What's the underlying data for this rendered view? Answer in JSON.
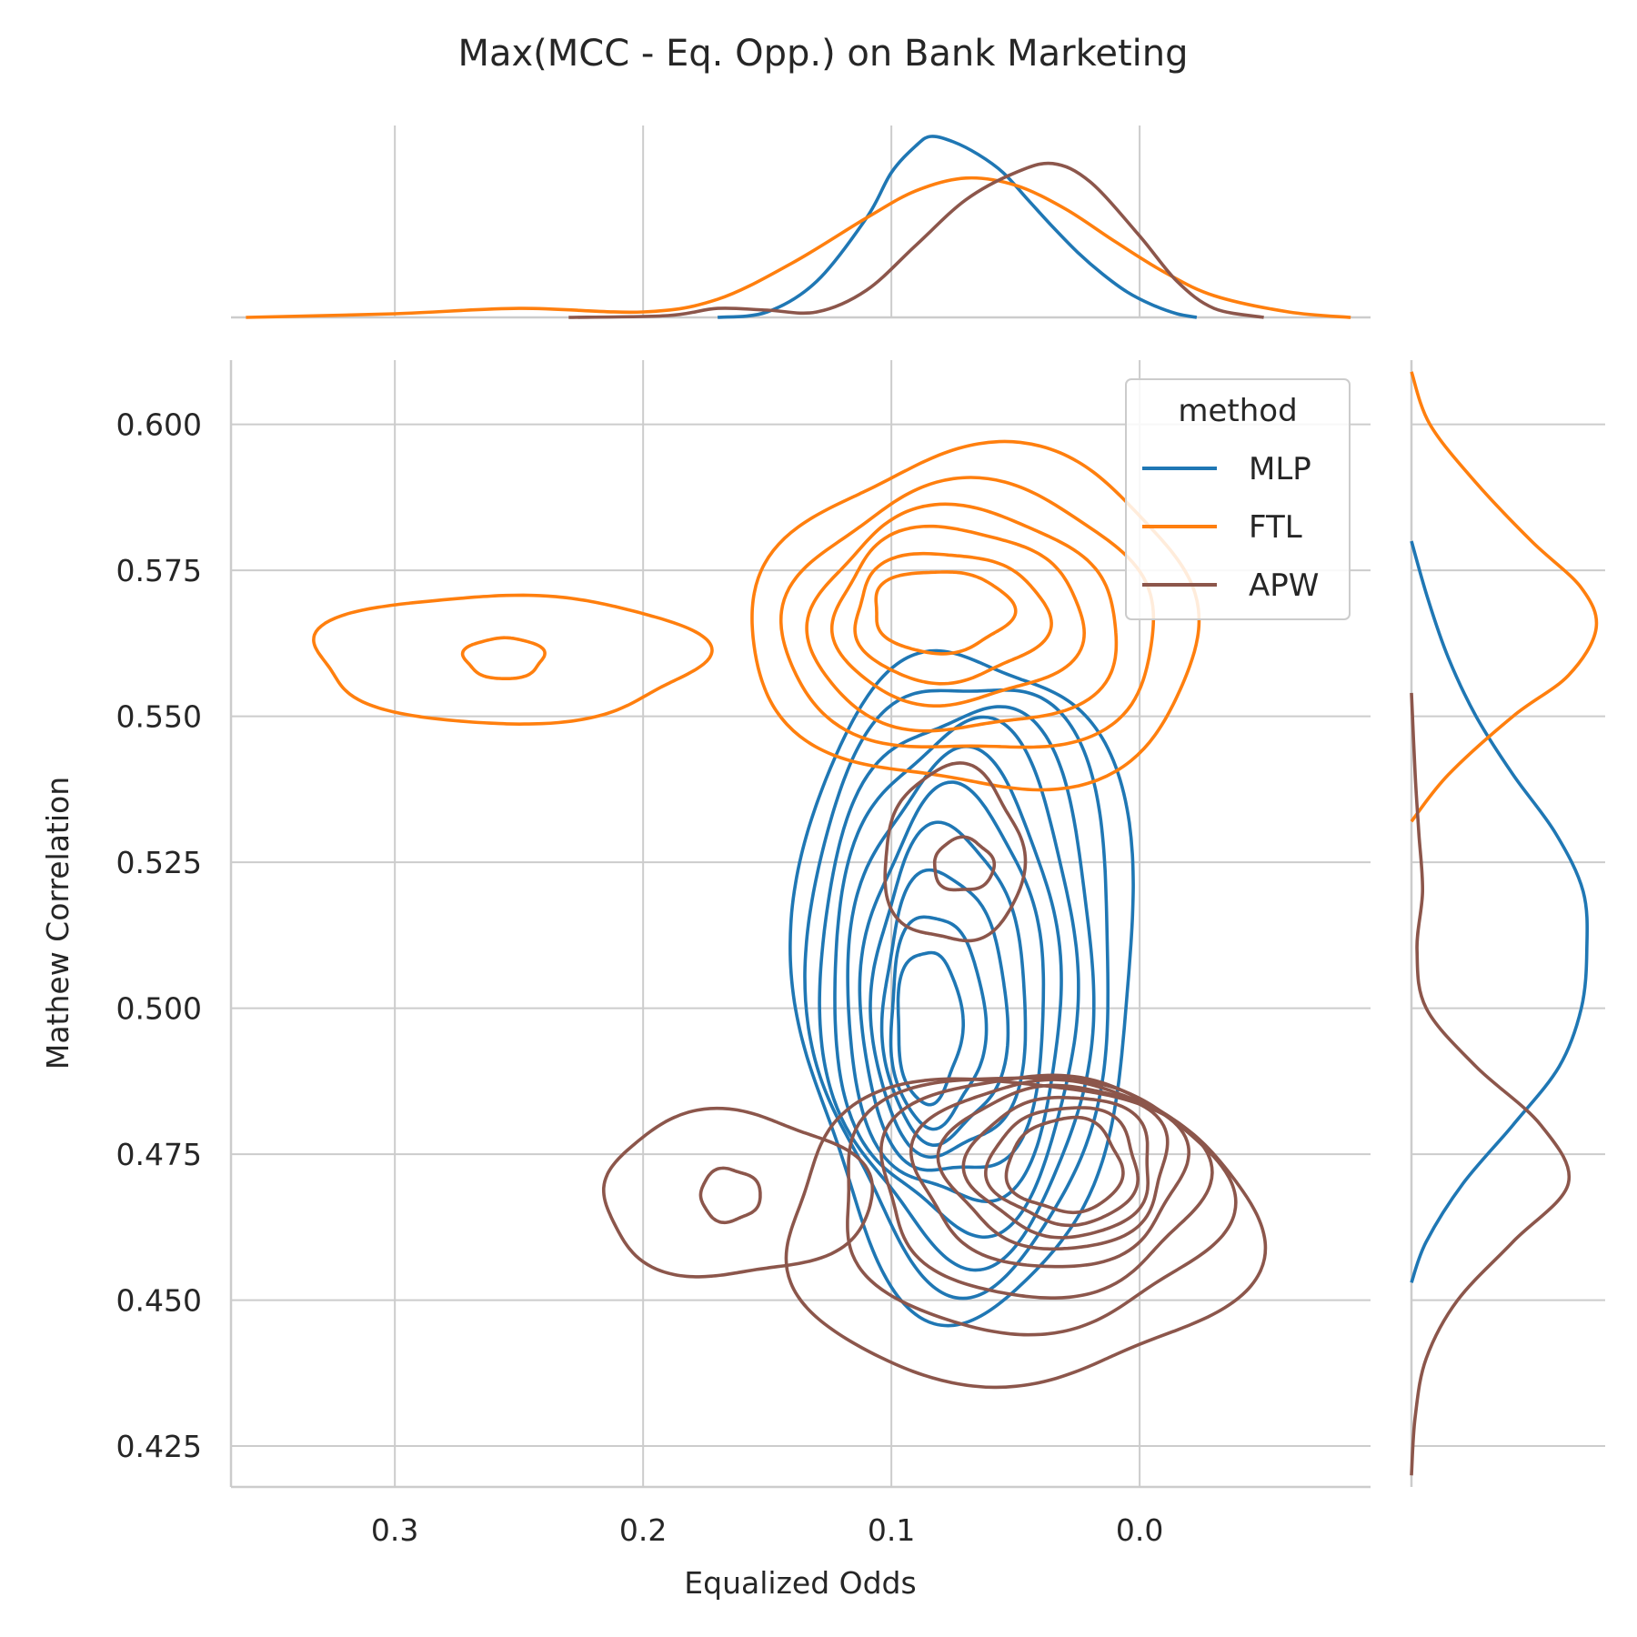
{
  "chart_data": {
    "type": "kde-joint",
    "title": "Max(MCC - Eq. Opp.) on Bank Marketing",
    "xlabel": "Equalized Odds",
    "ylabel": "Mathew Correlation",
    "x_inverted": true,
    "xlim": [
      0.366,
      -0.093
    ],
    "ylim": [
      0.418,
      0.611
    ],
    "x_ticks": [
      0.3,
      0.2,
      0.1,
      0.0
    ],
    "x_tick_labels": [
      "0.3",
      "0.2",
      "0.1",
      "0.0"
    ],
    "y_ticks": [
      0.425,
      0.45,
      0.475,
      0.5,
      0.525,
      0.55,
      0.575,
      0.6
    ],
    "y_tick_labels": [
      "0.425",
      "0.450",
      "0.475",
      "0.500",
      "0.525",
      "0.550",
      "0.575",
      "0.600"
    ],
    "grid": true,
    "legend": {
      "title": "method",
      "position": "top-right"
    },
    "series": [
      {
        "name": "MLP",
        "color": "#1f77b4",
        "contours": [
          {
            "cx": 0.07,
            "cy": 0.506,
            "rx": 0.068,
            "ry": 0.057
          },
          {
            "cx": 0.071,
            "cy": 0.506,
            "rx": 0.061,
            "ry": 0.052
          },
          {
            "cx": 0.072,
            "cy": 0.505,
            "rx": 0.055,
            "ry": 0.047
          },
          {
            "cx": 0.073,
            "cy": 0.505,
            "rx": 0.049,
            "ry": 0.043
          },
          {
            "cx": 0.074,
            "cy": 0.504,
            "rx": 0.043,
            "ry": 0.038
          },
          {
            "cx": 0.075,
            "cy": 0.503,
            "rx": 0.037,
            "ry": 0.033
          },
          {
            "cx": 0.077,
            "cy": 0.502,
            "rx": 0.031,
            "ry": 0.028
          },
          {
            "cx": 0.079,
            "cy": 0.5,
            "rx": 0.025,
            "ry": 0.023
          },
          {
            "cx": 0.082,
            "cy": 0.498,
            "rx": 0.019,
            "ry": 0.018
          },
          {
            "cx": 0.085,
            "cy": 0.497,
            "rx": 0.013,
            "ry": 0.013
          }
        ],
        "marginal_x": {
          "x": [
            0.17,
            0.15,
            0.13,
            0.11,
            0.1,
            0.09,
            0.084,
            0.075,
            0.065,
            0.055,
            0.045,
            0.035,
            0.025,
            0.015,
            0.005,
            -0.005,
            -0.015,
            -0.023
          ],
          "density": [
            0.0,
            0.03,
            0.2,
            0.55,
            0.8,
            0.95,
            1.0,
            0.97,
            0.9,
            0.8,
            0.65,
            0.5,
            0.36,
            0.24,
            0.14,
            0.07,
            0.02,
            0.0
          ]
        },
        "marginal_y": {
          "y": [
            0.453,
            0.46,
            0.47,
            0.48,
            0.49,
            0.5,
            0.51,
            0.52,
            0.53,
            0.54,
            0.55,
            0.56,
            0.57,
            0.58
          ],
          "density": [
            0.0,
            0.08,
            0.28,
            0.55,
            0.8,
            0.92,
            0.95,
            0.93,
            0.78,
            0.55,
            0.35,
            0.2,
            0.09,
            0.0
          ]
        }
      },
      {
        "name": "FTL",
        "color": "#ff7f0e",
        "contours": [
          {
            "cx": 0.065,
            "cy": 0.566,
            "rx": 0.09,
            "ry": 0.029
          },
          {
            "cx": 0.068,
            "cy": 0.566,
            "rx": 0.075,
            "ry": 0.023
          },
          {
            "cx": 0.071,
            "cy": 0.566,
            "rx": 0.062,
            "ry": 0.019
          },
          {
            "cx": 0.074,
            "cy": 0.567,
            "rx": 0.05,
            "ry": 0.015
          },
          {
            "cx": 0.077,
            "cy": 0.567,
            "rx": 0.039,
            "ry": 0.011
          },
          {
            "cx": 0.08,
            "cy": 0.568,
            "rx": 0.028,
            "ry": 0.007
          },
          {
            "cx": 0.255,
            "cy": 0.56,
            "rx": 0.078,
            "ry": 0.011
          },
          {
            "cx": 0.256,
            "cy": 0.56,
            "rx": 0.016,
            "ry": 0.0035
          }
        ],
        "marginal_x": {
          "x": [
            0.36,
            0.3,
            0.25,
            0.2,
            0.17,
            0.14,
            0.11,
            0.09,
            0.07,
            0.05,
            0.03,
            0.01,
            -0.01,
            -0.03,
            -0.06,
            -0.085
          ],
          "density": [
            0.0,
            0.02,
            0.05,
            0.03,
            0.1,
            0.3,
            0.55,
            0.7,
            0.77,
            0.73,
            0.6,
            0.42,
            0.25,
            0.12,
            0.03,
            0.0
          ]
        },
        "marginal_y": {
          "y": [
            0.532,
            0.54,
            0.55,
            0.557,
            0.565,
            0.572,
            0.58,
            0.59,
            0.6,
            0.609
          ],
          "density": [
            0.0,
            0.2,
            0.55,
            0.85,
            1.0,
            0.92,
            0.65,
            0.35,
            0.1,
            0.0
          ]
        }
      },
      {
        "name": "APW",
        "color": "#8c564b",
        "contours": [
          {
            "cx": 0.05,
            "cy": 0.462,
            "rx": 0.095,
            "ry": 0.026
          },
          {
            "cx": 0.045,
            "cy": 0.467,
            "rx": 0.078,
            "ry": 0.022
          },
          {
            "cx": 0.04,
            "cy": 0.47,
            "rx": 0.065,
            "ry": 0.019
          },
          {
            "cx": 0.036,
            "cy": 0.472,
            "rx": 0.054,
            "ry": 0.016
          },
          {
            "cx": 0.033,
            "cy": 0.473,
            "rx": 0.045,
            "ry": 0.014
          },
          {
            "cx": 0.031,
            "cy": 0.473,
            "rx": 0.037,
            "ry": 0.012
          },
          {
            "cx": 0.03,
            "cy": 0.473,
            "rx": 0.03,
            "ry": 0.01
          },
          {
            "cx": 0.03,
            "cy": 0.473,
            "rx": 0.023,
            "ry": 0.008
          },
          {
            "cx": 0.075,
            "cy": 0.526,
            "rx": 0.028,
            "ry": 0.015
          },
          {
            "cx": 0.071,
            "cy": 0.5245,
            "rx": 0.012,
            "ry": 0.0045
          },
          {
            "cx": 0.163,
            "cy": 0.468,
            "rx": 0.054,
            "ry": 0.014
          },
          {
            "cx": 0.165,
            "cy": 0.468,
            "rx": 0.012,
            "ry": 0.0045
          }
        ],
        "marginal_x": {
          "x": [
            0.23,
            0.19,
            0.17,
            0.15,
            0.13,
            0.11,
            0.09,
            0.07,
            0.05,
            0.035,
            0.02,
            0.0,
            -0.015,
            -0.03,
            -0.05
          ],
          "density": [
            0.0,
            0.01,
            0.05,
            0.04,
            0.03,
            0.15,
            0.4,
            0.65,
            0.8,
            0.85,
            0.75,
            0.45,
            0.2,
            0.05,
            0.0
          ]
        },
        "marginal_y": {
          "y": [
            0.42,
            0.43,
            0.44,
            0.45,
            0.46,
            0.47,
            0.48,
            0.49,
            0.5,
            0.51,
            0.52,
            0.53,
            0.54,
            0.554
          ],
          "density": [
            0.0,
            0.02,
            0.08,
            0.25,
            0.55,
            0.85,
            0.7,
            0.35,
            0.08,
            0.03,
            0.06,
            0.04,
            0.02,
            0.0
          ]
        }
      }
    ]
  }
}
